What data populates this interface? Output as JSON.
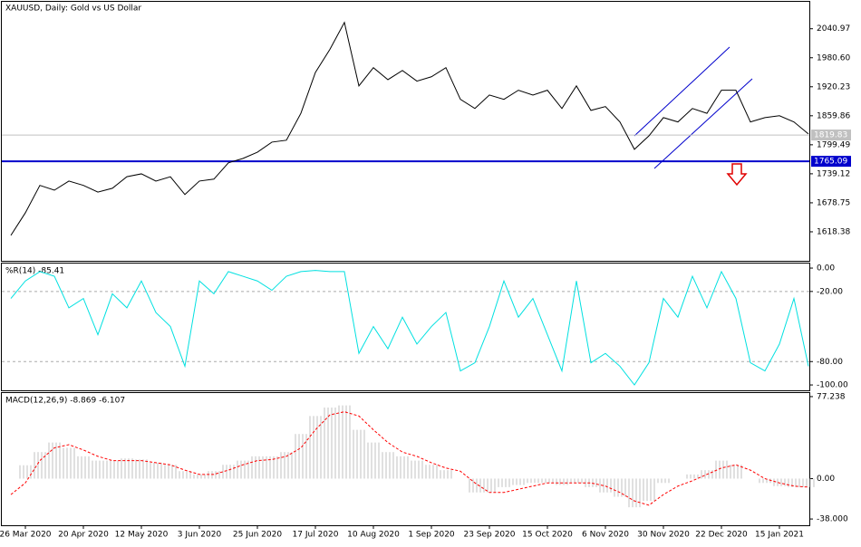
{
  "chart_data": [
    {
      "type": "line",
      "title": "XAUUSD, Daily:  Gold vs US Dollar",
      "color": "#000000",
      "values": [
        1611,
        1658,
        1715,
        1705,
        1724,
        1715,
        1701,
        1709,
        1733,
        1739,
        1724,
        1733,
        1696,
        1724,
        1728,
        1762,
        1771,
        1784,
        1805,
        1809,
        1865,
        1950,
        1998,
        2054,
        1922,
        1960,
        1935,
        1954,
        1932,
        1941,
        1960,
        1894,
        1875,
        1903,
        1894,
        1913,
        1903,
        1913,
        1875,
        1922,
        1871,
        1879,
        1847,
        1790,
        1818,
        1856,
        1847,
        1875,
        1865,
        1913,
        1913,
        1847,
        1856,
        1860,
        1847,
        1822
      ],
      "ylim": [
        1558,
        2097
      ],
      "yticks": [
        2040.97,
        {
          "value": 1980.6,
          "label": "1980.60"
        },
        1920.23,
        1859.86,
        1799.49,
        1739.12,
        1678.75,
        1618.38
      ],
      "hline": 1765.09,
      "hline_color": "#0000cc",
      "current_price": 1819.83
    },
    {
      "type": "line",
      "title": "%R(14) -85.41",
      "color": "#00e0e0",
      "values": [
        -26,
        -11,
        -3,
        -7,
        -34,
        -26,
        -57,
        -22,
        -34,
        -11,
        -38,
        -50,
        -84,
        -11,
        -22,
        -3,
        -7,
        -11,
        -19,
        -7,
        -3,
        -2,
        -3,
        -3,
        -73,
        -50,
        -69,
        -42,
        -65,
        -50,
        -38,
        -88,
        -81,
        -50,
        -11,
        -42,
        -26,
        -57,
        -88,
        -11,
        -81,
        -73,
        -84,
        -100,
        -81,
        -26,
        -42,
        -7,
        -34,
        -3,
        -26,
        -81,
        -88,
        -65,
        -26,
        -84
      ],
      "ylim": [
        -104.6,
        3.9
      ],
      "yticks": [
        {
          "value": 0,
          "label": "0.00"
        },
        {
          "value": -20,
          "label": "-20.00"
        },
        {
          "value": -80,
          "label": "-80.00"
        },
        {
          "value": -100,
          "label": "-100.00"
        }
      ],
      "levels": [
        -20,
        -80
      ]
    },
    {
      "type": "macd",
      "title": "MACD(12,26,9) -8.869 -6.107",
      "categories": [
        null,
        "26 Mar 2020",
        null,
        null,
        null,
        "20 Apr 2020",
        null,
        null,
        null,
        "12 May 2020",
        null,
        null,
        null,
        "3 Jun 2020",
        null,
        null,
        null,
        "25 Jun 2020",
        null,
        null,
        null,
        "17 Jul 2020",
        null,
        null,
        null,
        "10 Aug 2020",
        null,
        null,
        null,
        "1 Sep 2020",
        null,
        null,
        null,
        "23 Sep 2020",
        null,
        null,
        null,
        "15 Oct 2020",
        null,
        null,
        null,
        "6 Nov 2020",
        null,
        null,
        null,
        "30 Nov 2020",
        null,
        null,
        null,
        "22 Dec 2020",
        null,
        null,
        null,
        "15 Jan 2021",
        null,
        null
      ],
      "series": [
        {
          "color": "#c0c0c0",
          "values": [
            0,
            12.6,
            25,
            34,
            29,
            21,
            17,
            17,
            19,
            18,
            15,
            13,
            7,
            4,
            7,
            13,
            17,
            21,
            21,
            25,
            42,
            59,
            67,
            69,
            46,
            34,
            25,
            21,
            17,
            13,
            8,
            0,
            -13,
            -13,
            -8,
            -6,
            -4,
            -4,
            -6,
            -4,
            -8,
            -13,
            -17,
            -27,
            -21,
            -4,
            0,
            4,
            8,
            17,
            13,
            0,
            -4,
            -7,
            -8,
            -8
          ]
        },
        {
          "color": "#ff0000",
          "values": [
            -15,
            -4,
            17,
            29,
            32,
            27,
            21,
            17,
            17,
            17,
            15,
            13,
            8,
            4,
            4,
            8,
            13,
            17,
            18,
            21,
            29,
            46,
            60,
            63,
            59,
            46,
            34,
            25,
            21,
            15,
            10,
            7,
            -4,
            -13,
            -13,
            -10,
            -7,
            -4,
            -4,
            -4,
            -4,
            -7,
            -13,
            -21,
            -25,
            -15,
            -7,
            -2,
            4,
            10,
            13,
            8,
            0,
            -4,
            -7,
            -8
          ]
        }
      ],
      "ylim": [
        -43.9,
        80.6
      ],
      "yticks": [
        77.238,
        {
          "value": 0,
          "label": "0.00"
        },
        {
          "value": -38,
          "label": "-38.000"
        }
      ]
    }
  ]
}
